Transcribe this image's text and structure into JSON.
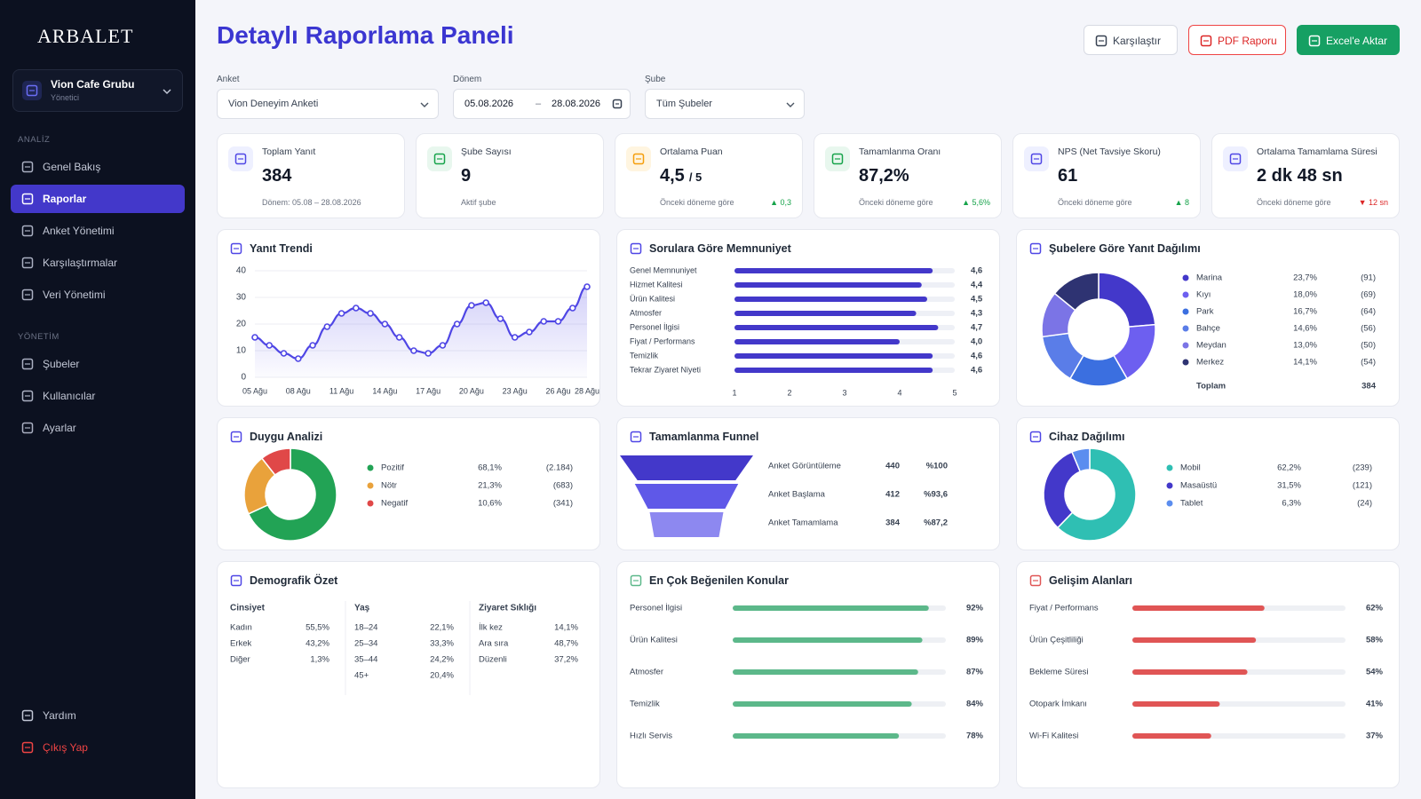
{
  "sidebar": {
    "brand": "ARBALET",
    "org": {
      "name": "Vion Cafe Grubu",
      "role": "Yönetici"
    },
    "sections": [
      {
        "title": "ANALİZ",
        "items": [
          "Genel Bakış",
          "Raporlar",
          "Anket Yönetimi",
          "Karşılaştırmalar",
          "Veri Yönetimi"
        ]
      },
      {
        "title": "YÖNETİM",
        "items": [
          "Şubeler",
          "Kullanıcılar",
          "Ayarlar"
        ]
      }
    ],
    "active_item": "Raporlar",
    "footer": [
      "Yardım",
      "Çıkış Yap"
    ]
  },
  "header": {
    "title": "Detaylı Raporlama Paneli",
    "buttons": [
      "Karşılaştır",
      "PDF Raporu",
      "Excel'e Aktar"
    ]
  },
  "filters": {
    "survey": {
      "label": "Anket",
      "value": "Vion Deneyim Anketi"
    },
    "period": {
      "label": "Dönem",
      "start": "05.08.2026",
      "separator": "–",
      "end": "28.08.2026"
    },
    "branch": {
      "label": "Şube",
      "value": "Tüm Şubeler"
    }
  },
  "kpis": [
    {
      "label": "Toplam Yanıt",
      "value": "384",
      "note": "Dönem: 05.08 – 28.08.2026"
    },
    {
      "label": "Şube Sayısı",
      "value": "9",
      "note": "Aktif şube"
    },
    {
      "label": "Ortalama Puan",
      "value": "4,5",
      "unit": "/ 5",
      "note": "Önceki döneme göre",
      "change": "▲ 0,3",
      "trend": "up"
    },
    {
      "label": "Tamamlanma Oranı",
      "value": "87,2%",
      "note": "Önceki döneme göre",
      "change": "▲ 5,6%",
      "trend": "up"
    },
    {
      "label": "NPS (Net Tavsiye Skoru)",
      "value": "61",
      "note": "Önceki döneme göre",
      "change": "▲ 8",
      "trend": "up"
    },
    {
      "label": "Ortalama Tamamlama Süresi",
      "value": "2 dk 48 sn",
      "note": "Önceki döneme göre",
      "change": "▼ 12 sn",
      "trend": "down"
    }
  ],
  "chart_data": [
    {
      "type": "line",
      "title": "Yanıt Trendi",
      "categories": [
        "05 Ağu",
        null,
        null,
        "08 Ağu",
        null,
        null,
        "11 Ağu",
        null,
        null,
        "14 Ağu",
        null,
        null,
        "17 Ağu",
        null,
        null,
        "20 Ağu",
        null,
        null,
        "23 Ağu",
        null,
        null,
        "26 Ağu",
        null,
        "28 Ağu"
      ],
      "values": [
        15,
        12,
        9,
        7,
        12,
        19,
        24,
        26,
        24,
        20,
        15,
        10,
        9,
        12,
        20,
        27,
        28,
        22,
        15,
        17,
        21,
        21,
        26,
        34
      ],
      "color": "#4f46e5",
      "ylim": [
        0,
        40
      ],
      "yticks": [
        0,
        10,
        20,
        30,
        40
      ],
      "grid": true
    },
    {
      "type": "bar",
      "horizontal": true,
      "title": "Sorulara Göre Memnuniyet",
      "categories": [
        "Genel Memnuniyet",
        "Hizmet Kalitesi",
        "Ürün Kalitesi",
        "Atmosfer",
        "Personel İlgisi",
        "Fiyat / Performans",
        "Temizlik",
        "Tekrar Ziyaret Niyeti"
      ],
      "values": [
        4.6,
        4.4,
        4.5,
        4.3,
        4.7,
        4.0,
        4.6,
        4.6
      ],
      "value_labels": [
        "4,6",
        "4,4",
        "4,5",
        "4,3",
        "4,7",
        "4,0",
        "4,6",
        "4,6"
      ],
      "color": "#4338ca",
      "xlim": [
        1,
        5
      ],
      "xticks": [
        1,
        2,
        3,
        4,
        5
      ]
    },
    {
      "type": "donut",
      "title": "Şubelere Göre Yanıt Dağılımı",
      "categories": [
        "Marina",
        "Kıyı",
        "Park",
        "Bahçe",
        "Meydan",
        "Merkez"
      ],
      "values": [
        23.7,
        18.0,
        16.7,
        14.6,
        13.0,
        14.1
      ],
      "value_labels": [
        "23,7%",
        "18,0%",
        "16,7%",
        "14,6%",
        "13,0%",
        "14,1%"
      ],
      "count_labels": [
        "(91)",
        "(69)",
        "(64)",
        "(56)",
        "(50)",
        "(54)"
      ],
      "colors": [
        "#4338ca",
        "#6d5ff0",
        "#3b6fe0",
        "#5a7de8",
        "#7b74e6",
        "#2e3372"
      ],
      "total_label": "Toplam",
      "total": "384"
    },
    {
      "type": "donut",
      "title": "Duygu Analizi",
      "categories": [
        "Pozitif",
        "Nötr",
        "Negatif"
      ],
      "values": [
        68.1,
        21.3,
        10.6
      ],
      "value_labels": [
        "68,1%",
        "21,3%",
        "10,6%"
      ],
      "count_labels": [
        "(2.184)",
        "(683)",
        "(341)"
      ],
      "colors": [
        "#22a355",
        "#e9a23b",
        "#e04848"
      ]
    },
    {
      "type": "funnel",
      "title": "Tamamlanma Funnel",
      "categories": [
        "Anket Görüntüleme",
        "Anket Başlama",
        "Anket Tamamlama"
      ],
      "values": [
        440,
        412,
        384
      ],
      "percent_labels": [
        "%100",
        "%93,6",
        "%87,2"
      ],
      "colors": [
        "#4338ca",
        "#5f58e8",
        "#8d88f0"
      ]
    },
    {
      "type": "donut",
      "title": "Cihaz Dağılımı",
      "categories": [
        "Mobil",
        "Masaüstü",
        "Tablet"
      ],
      "values": [
        62.2,
        31.5,
        6.3
      ],
      "value_labels": [
        "62,2%",
        "31,5%",
        "6,3%"
      ],
      "count_labels": [
        "(239)",
        "(121)",
        "(24)"
      ],
      "colors": [
        "#2fbfb3",
        "#4338ca",
        "#5b8def"
      ]
    },
    {
      "type": "progress",
      "title": "En Çok Beğenilen Konular",
      "categories": [
        "Personel İlgisi",
        "Ürün Kalitesi",
        "Atmosfer",
        "Temizlik",
        "Hızlı Servis"
      ],
      "values": [
        92,
        89,
        87,
        84,
        78
      ],
      "value_labels": [
        "92%",
        "89%",
        "87%",
        "84%",
        "78%"
      ],
      "color": "#5cb88a",
      "xlim": [
        0,
        100
      ]
    },
    {
      "type": "progress",
      "title": "Gelişim Alanları",
      "categories": [
        "Fiyat / Performans",
        "Ürün Çeşitliliği",
        "Bekleme Süresi",
        "Otopark İmkanı",
        "Wi-Fi Kalitesi"
      ],
      "values": [
        62,
        58,
        54,
        41,
        37
      ],
      "value_labels": [
        "62%",
        "58%",
        "54%",
        "41%",
        "37%"
      ],
      "color": "#e05555",
      "xlim": [
        0,
        100
      ]
    }
  ],
  "demographics": {
    "title": "Demografik Özet",
    "groups": [
      {
        "title": "Cinsiyet",
        "rows": [
          [
            "Kadın",
            "55,5%"
          ],
          [
            "Erkek",
            "43,2%"
          ],
          [
            "Diğer",
            "1,3%"
          ]
        ]
      },
      {
        "title": "Yaş",
        "rows": [
          [
            "18–24",
            "22,1%"
          ],
          [
            "25–34",
            "33,3%"
          ],
          [
            "35–44",
            "24,2%"
          ],
          [
            "45+",
            "20,4%"
          ]
        ]
      },
      {
        "title": "Ziyaret Sıklığı",
        "rows": [
          [
            "İlk kez",
            "14,1%"
          ],
          [
            "Ara sıra",
            "48,7%"
          ],
          [
            "Düzenli",
            "37,2%"
          ]
        ]
      }
    ]
  }
}
